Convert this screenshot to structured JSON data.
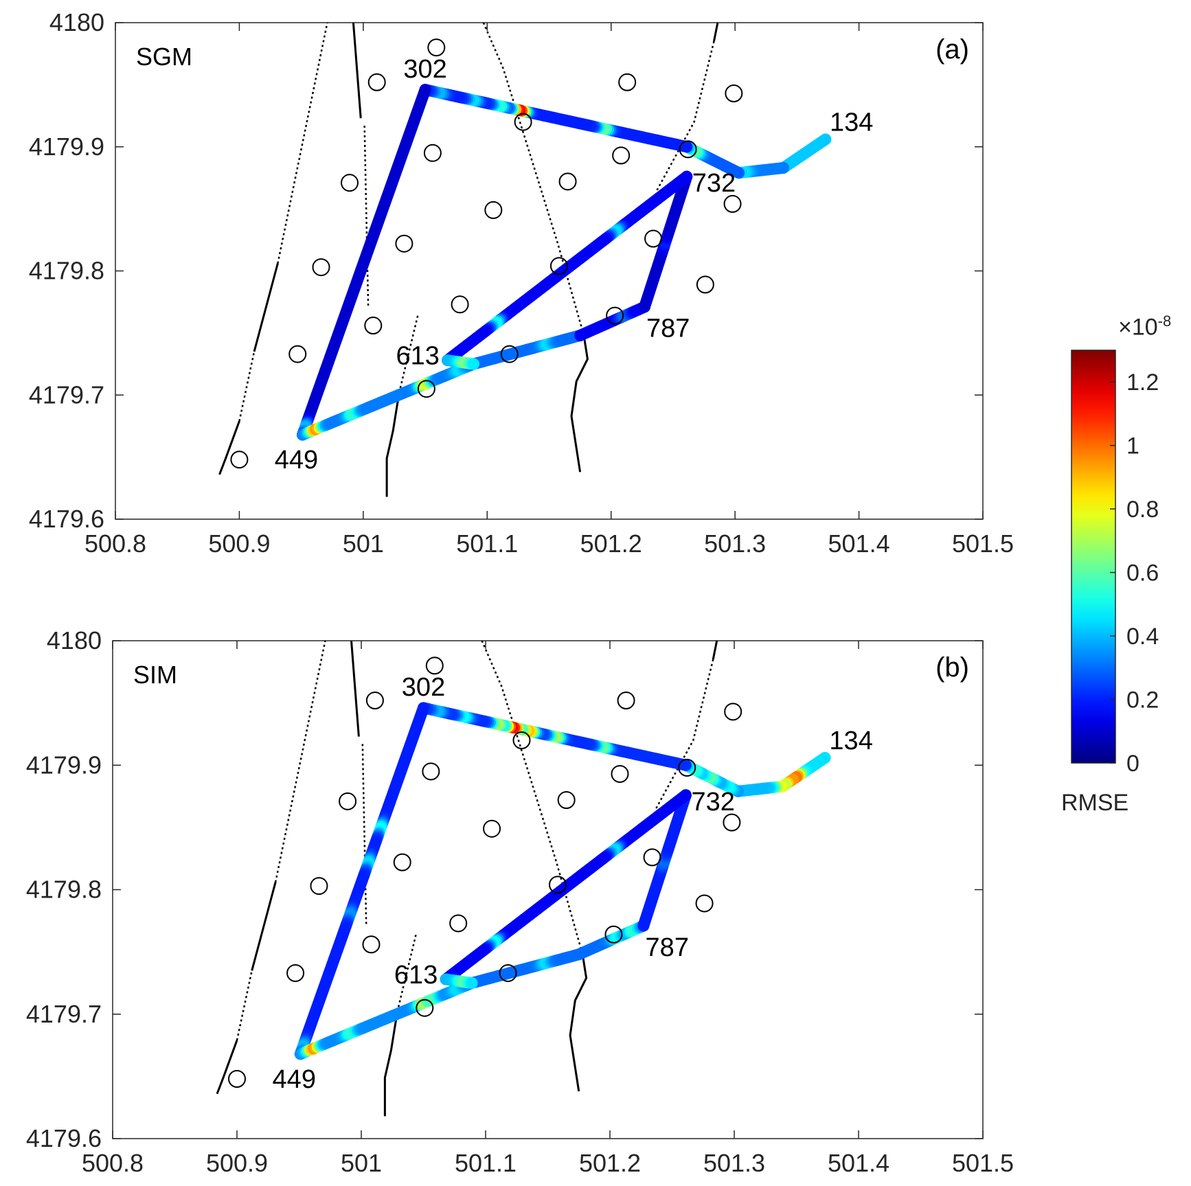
{
  "chart_data": [
    {
      "type": "scatter",
      "panel_label": "(a)",
      "method_label": "SGM",
      "xlim": [
        500.8,
        501.5
      ],
      "ylim": [
        4179.6,
        4180
      ],
      "xticks": [
        "500.8",
        "500.9",
        "501",
        "501.1",
        "501.2",
        "501.3",
        "501.4",
        "501.5"
      ],
      "yticks": [
        "4179.6",
        "4179.7",
        "4179.8",
        "4179.9",
        "4180"
      ],
      "track": {
        "vertices": [
          [
            501.373,
            4179.906
          ],
          [
            501.339,
            4179.883
          ],
          [
            501.303,
            4179.879
          ],
          [
            501.261,
            4179.9
          ],
          [
            501.05,
            4179.946
          ],
          [
            500.951,
            4179.668
          ],
          [
            501.089,
            4179.725
          ],
          [
            501.175,
            4179.748
          ],
          [
            501.227,
            4179.771
          ],
          [
            501.261,
            4179.876
          ],
          [
            501.068,
            4179.728
          ],
          [
            501.089,
            4179.725
          ]
        ],
        "segments": [
          {
            "base": 0.42,
            "hot": []
          },
          {
            "base": 0.32,
            "hot": [
              [
                0.9,
                0.45
              ]
            ]
          },
          {
            "base": 0.28,
            "hot": [
              [
                0.85,
                0.6
              ]
            ]
          },
          {
            "base": 0.2,
            "hot": [
              [
                0.32,
                0.62
              ],
              [
                0.64,
                1.15
              ],
              [
                0.72,
                0.55
              ],
              [
                0.82,
                0.45
              ],
              [
                0.95,
                0.4
              ]
            ]
          },
          {
            "base": 0.1,
            "hot": [
              [
                0.98,
                0.4
              ]
            ]
          },
          {
            "base": 0.32,
            "hot": [
              [
                0.08,
                0.95
              ],
              [
                0.3,
                0.55
              ],
              [
                0.72,
                0.78
              ],
              [
                0.92,
                0.45
              ]
            ]
          },
          {
            "base": 0.3,
            "hot": [
              [
                0.7,
                0.45
              ]
            ]
          },
          {
            "base": 0.15,
            "hot": [
              [
                0.7,
                0.3
              ]
            ]
          },
          {
            "base": 0.1,
            "hot": [
              [
                0.5,
                0.2
              ]
            ]
          },
          {
            "base": 0.15,
            "hot": [
              [
                0.3,
                0.45
              ],
              [
                0.8,
                0.5
              ]
            ]
          },
          {
            "base": 0.4,
            "hot": [
              [
                0.7,
                0.65
              ]
            ]
          }
        ]
      },
      "stations": [
        [
          501.059,
          4179.98
        ],
        [
          501.011,
          4179.952
        ],
        [
          501.213,
          4179.952
        ],
        [
          501.299,
          4179.943
        ],
        [
          501.129,
          4179.92
        ],
        [
          501.056,
          4179.895
        ],
        [
          501.208,
          4179.893
        ],
        [
          501.262,
          4179.898
        ],
        [
          500.989,
          4179.871
        ],
        [
          501.165,
          4179.872
        ],
        [
          501.298,
          4179.854
        ],
        [
          501.105,
          4179.849
        ],
        [
          501.033,
          4179.822
        ],
        [
          501.234,
          4179.826
        ],
        [
          500.966,
          4179.803
        ],
        [
          501.158,
          4179.804
        ],
        [
          501.276,
          4179.789
        ],
        [
          501.078,
          4179.773
        ],
        [
          501.203,
          4179.764
        ],
        [
          501.008,
          4179.756
        ],
        [
          500.947,
          4179.733
        ],
        [
          501.118,
          4179.733
        ],
        [
          501.051,
          4179.705
        ],
        [
          500.9,
          4179.648
        ]
      ],
      "annotations": [
        {
          "text": "302",
          "x": 501.05,
          "y": 4179.963
        },
        {
          "text": "134",
          "x": 501.394,
          "y": 4179.92
        },
        {
          "text": "732",
          "x": 501.283,
          "y": 4179.871
        },
        {
          "text": "787",
          "x": 501.246,
          "y": 4179.754
        },
        {
          "text": "613",
          "x": 501.044,
          "y": 4179.732
        },
        {
          "text": "449",
          "x": 500.946,
          "y": 4179.648
        }
      ]
    },
    {
      "type": "scatter",
      "panel_label": "(b)",
      "method_label": "SIM",
      "xlim": [
        500.8,
        501.5
      ],
      "ylim": [
        4179.6,
        4180
      ],
      "xticks": [
        "500.8",
        "500.9",
        "501",
        "501.1",
        "501.2",
        "501.3",
        "501.4",
        "501.5"
      ],
      "yticks": [
        "4179.6",
        "4179.7",
        "4179.8",
        "4179.9",
        "4180"
      ],
      "track": {
        "vertices": [
          [
            501.373,
            4179.906
          ],
          [
            501.339,
            4179.883
          ],
          [
            501.303,
            4179.879
          ],
          [
            501.261,
            4179.9
          ],
          [
            501.05,
            4179.946
          ],
          [
            500.951,
            4179.668
          ],
          [
            501.089,
            4179.725
          ],
          [
            501.175,
            4179.748
          ],
          [
            501.227,
            4179.771
          ],
          [
            501.261,
            4179.876
          ],
          [
            501.068,
            4179.728
          ],
          [
            501.089,
            4179.725
          ]
        ],
        "segments": [
          {
            "base": 0.45,
            "hot": [
              [
                0.7,
                1.0
              ],
              [
                0.82,
                0.95
              ],
              [
                0.9,
                0.75
              ]
            ]
          },
          {
            "base": 0.4,
            "hot": [
              [
                0.05,
                0.8
              ]
            ]
          },
          {
            "base": 0.35,
            "hot": [
              [
                0.2,
                0.5
              ],
              [
                0.55,
                0.6
              ],
              [
                0.85,
                0.55
              ]
            ]
          },
          {
            "base": 0.22,
            "hot": [
              [
                0.32,
                0.62
              ],
              [
                0.5,
                0.7
              ],
              [
                0.6,
                0.9
              ],
              [
                0.66,
                1.15
              ],
              [
                0.72,
                0.7
              ],
              [
                0.85,
                0.5
              ],
              [
                0.95,
                0.4
              ]
            ]
          },
          {
            "base": 0.2,
            "hot": [
              [
                0.35,
                0.5
              ],
              [
                0.45,
                0.45
              ],
              [
                0.6,
                0.35
              ],
              [
                0.98,
                0.4
              ]
            ]
          },
          {
            "base": 0.34,
            "hot": [
              [
                0.08,
                0.95
              ],
              [
                0.3,
                0.55
              ],
              [
                0.72,
                0.7
              ],
              [
                0.78,
                0.6
              ],
              [
                0.92,
                0.45
              ]
            ]
          },
          {
            "base": 0.3,
            "hot": [
              [
                0.7,
                0.45
              ]
            ]
          },
          {
            "base": 0.3,
            "hot": [
              [
                0.6,
                0.5
              ],
              [
                0.85,
                0.55
              ]
            ]
          },
          {
            "base": 0.2,
            "hot": [
              [
                0.5,
                0.3
              ]
            ]
          },
          {
            "base": 0.15,
            "hot": [
              [
                0.3,
                0.45
              ],
              [
                0.8,
                0.5
              ]
            ]
          },
          {
            "base": 0.4,
            "hot": [
              [
                0.7,
                0.6
              ]
            ]
          }
        ]
      },
      "stations": [
        [
          501.059,
          4179.98
        ],
        [
          501.011,
          4179.952
        ],
        [
          501.213,
          4179.952
        ],
        [
          501.299,
          4179.943
        ],
        [
          501.129,
          4179.92
        ],
        [
          501.056,
          4179.895
        ],
        [
          501.208,
          4179.893
        ],
        [
          501.262,
          4179.898
        ],
        [
          500.989,
          4179.871
        ],
        [
          501.165,
          4179.872
        ],
        [
          501.298,
          4179.854
        ],
        [
          501.105,
          4179.849
        ],
        [
          501.033,
          4179.822
        ],
        [
          501.234,
          4179.826
        ],
        [
          500.966,
          4179.803
        ],
        [
          501.158,
          4179.804
        ],
        [
          501.276,
          4179.789
        ],
        [
          501.078,
          4179.773
        ],
        [
          501.203,
          4179.764
        ],
        [
          501.008,
          4179.756
        ],
        [
          500.947,
          4179.733
        ],
        [
          501.118,
          4179.733
        ],
        [
          501.051,
          4179.705
        ],
        [
          500.9,
          4179.648
        ]
      ],
      "annotations": [
        {
          "text": "302",
          "x": 501.05,
          "y": 4179.963
        },
        {
          "text": "134",
          "x": 501.394,
          "y": 4179.92
        },
        {
          "text": "732",
          "x": 501.283,
          "y": 4179.871
        },
        {
          "text": "787",
          "x": 501.246,
          "y": 4179.754
        },
        {
          "text": "613",
          "x": 501.044,
          "y": 4179.732
        },
        {
          "text": "449",
          "x": 500.946,
          "y": 4179.648
        }
      ]
    }
  ],
  "faults": [
    {
      "style": "solid",
      "points": [
        [
          500.884,
          4179.636
        ],
        [
          500.889,
          4179.649
        ],
        [
          500.9,
          4179.679
        ]
      ]
    },
    {
      "style": "dotted",
      "points": [
        [
          500.9,
          4179.679
        ],
        [
          500.912,
          4179.735
        ]
      ]
    },
    {
      "style": "solid",
      "points": [
        [
          500.912,
          4179.735
        ],
        [
          500.931,
          4179.806
        ]
      ]
    },
    {
      "style": "dotted",
      "points": [
        [
          500.931,
          4179.806
        ],
        [
          500.971,
          4180
        ]
      ]
    },
    {
      "style": "solid",
      "points": [
        [
          500.992,
          4180
        ],
        [
          500.998,
          4179.923
        ]
      ]
    },
    {
      "style": "dotted",
      "points": [
        [
          501.001,
          4179.917
        ],
        [
          501.004,
          4179.772
        ]
      ]
    },
    {
      "style": "solid",
      "points": [
        [
          501.019,
          4179.618
        ],
        [
          501.019,
          4179.649
        ],
        [
          501.024,
          4179.671
        ],
        [
          501.029,
          4179.702
        ]
      ]
    },
    {
      "style": "dotted",
      "points": [
        [
          501.029,
          4179.702
        ],
        [
          501.044,
          4179.764
        ]
      ]
    },
    {
      "style": "dotted",
      "points": [
        [
          501.097,
          4180
        ],
        [
          501.113,
          4179.963
        ],
        [
          501.138,
          4179.883
        ],
        [
          501.157,
          4179.822
        ],
        [
          501.178,
          4179.748
        ]
      ]
    },
    {
      "style": "solid",
      "points": [
        [
          501.178,
          4179.748
        ],
        [
          501.181,
          4179.729
        ],
        [
          501.172,
          4179.711
        ],
        [
          501.168,
          4179.683
        ],
        [
          501.175,
          4179.638
        ]
      ]
    },
    {
      "style": "solid",
      "points": [
        [
          501.286,
          4180
        ],
        [
          501.283,
          4179.985
        ]
      ]
    },
    {
      "style": "dotted",
      "points": [
        [
          501.283,
          4179.985
        ],
        [
          501.267,
          4179.92
        ],
        [
          501.237,
          4179.865
        ]
      ]
    }
  ],
  "colorbar": {
    "label": "RMSE",
    "multiplier": "×10",
    "exponent": "-8",
    "range": [
      0,
      1.3
    ],
    "ticks": [
      "0",
      "0.2",
      "0.4",
      "0.6",
      "0.8",
      "1",
      "1.2"
    ],
    "tick_values": [
      0,
      0.2,
      0.4,
      0.6,
      0.8,
      1,
      1.2
    ],
    "colormap": "jet"
  }
}
